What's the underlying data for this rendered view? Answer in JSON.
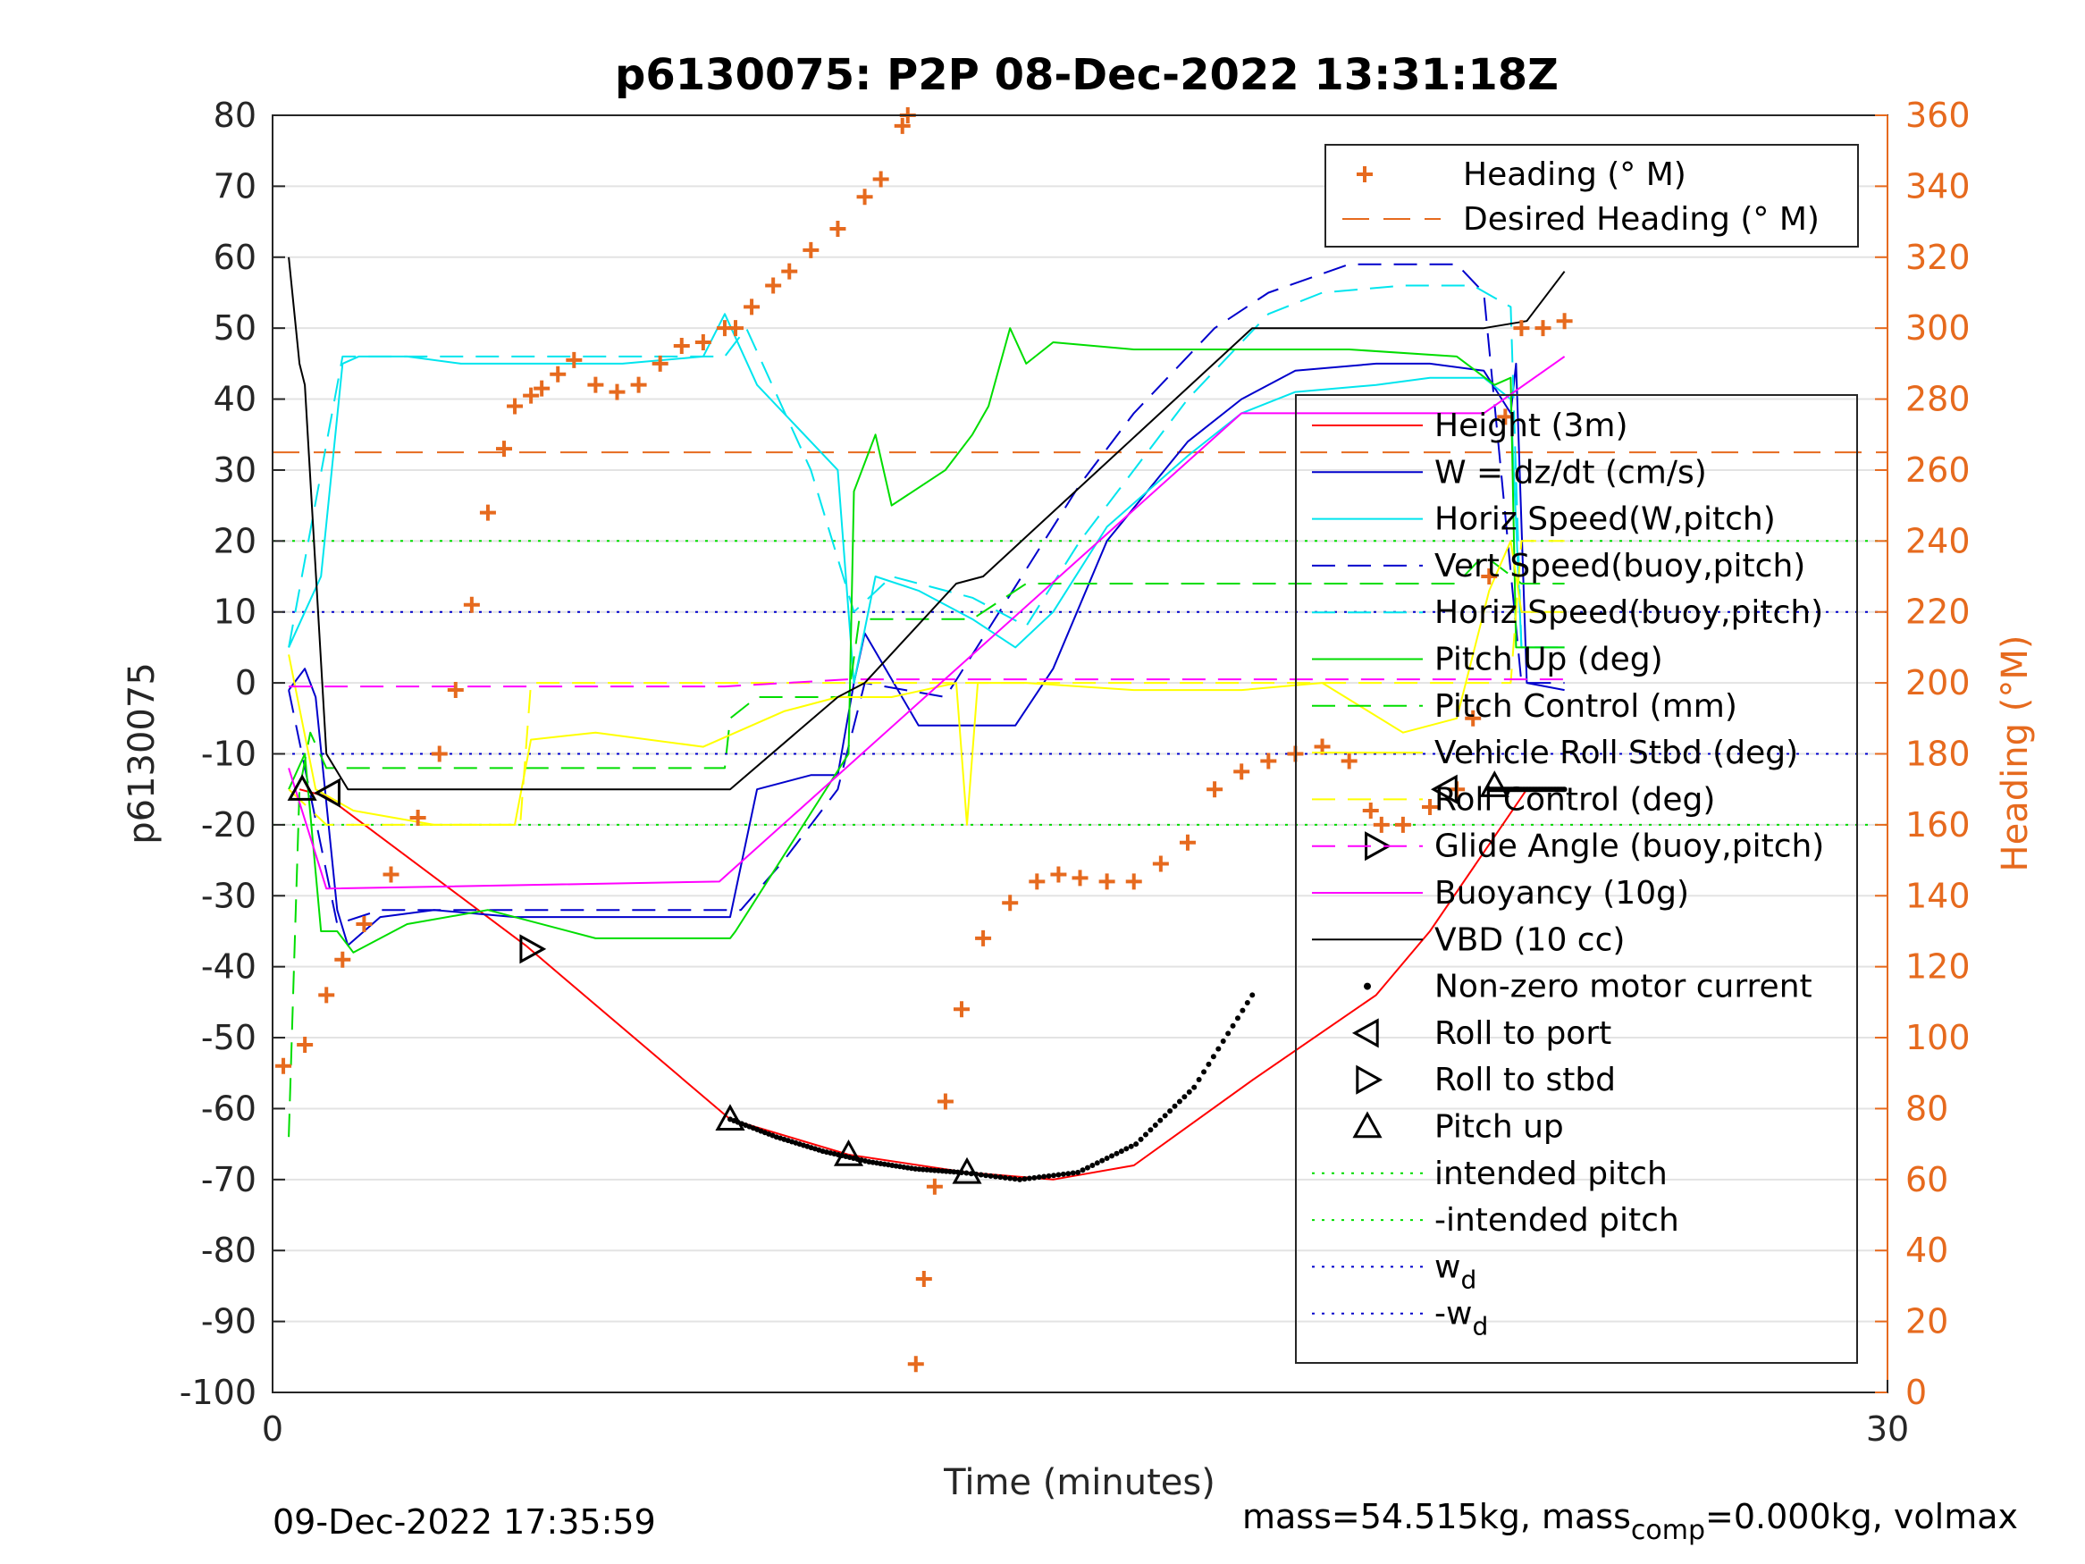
{
  "title": "p6130075: P2P 08-Dec-2022 13:31:18Z",
  "footer_left": "09-Dec-2022 17:35:59",
  "footer_right": {
    "part1": "mass=54.515kg, mass",
    "sub": "comp",
    "part2": "=0.000kg, volmax"
  },
  "colors": {
    "height": "#ff0000",
    "w": "#0000cc",
    "horiz": "#00e5ee",
    "vert": "#0000cc",
    "horiz_buoy": "#00e5ee",
    "pitch": "#00dd00",
    "pitch_control": "#00dd00",
    "roll": "#ffff00",
    "roll_control": "#ffff00",
    "glide": "#ff00ff",
    "buoyancy": "#ff00ff",
    "vbd": "#000000",
    "heading": "#e66a1e",
    "intended": "#00dd00",
    "wd": "#0000cc"
  },
  "chart_data": {
    "type": "line",
    "title": "p6130075: P2P 08-Dec-2022 13:31:18Z",
    "xlabel": "Time (minutes)",
    "ylabel": "p6130075",
    "ylabel_right": "Heading (°M)",
    "xlim": [
      0,
      30
    ],
    "ylim": [
      -100,
      80
    ],
    "ylim_right": [
      0,
      360
    ],
    "x_ticks": [
      "0",
      "30"
    ],
    "y_ticks": [
      "80",
      "70",
      "60",
      "50",
      "40",
      "30",
      "20",
      "10",
      "0",
      "-10",
      "-20",
      "-30",
      "-40",
      "-50",
      "-60",
      "-70",
      "-80",
      "-90",
      "-100"
    ],
    "y_right_ticks": [
      "360",
      "340",
      "320",
      "300",
      "280",
      "260",
      "240",
      "220",
      "200",
      "180",
      "160",
      "140",
      "120",
      "100",
      "80",
      "60",
      "40",
      "20",
      "0"
    ],
    "grid": true,
    "legends": {
      "heading": {
        "location": "top-right",
        "entries": [
          "Heading (° M)",
          "Desired Heading (° M)"
        ]
      },
      "main": {
        "location": "right",
        "entries": [
          "Height (3m)",
          "W = dz/dt (cm/s)",
          "Horiz Speed(W,pitch)",
          "Vert Speed(buoy,pitch)",
          "Horiz Speed(buoy,pitch)",
          "Pitch Up (deg)",
          "Pitch Control (mm)",
          "Vehicle Roll Stbd (deg)",
          "Roll Control (deg)",
          "Glide Angle (buoy,pitch)",
          "Buoyancy (10g)",
          "VBD (10 cc)",
          "Non-zero motor current",
          "Roll to port",
          "Roll to stbd",
          "Pitch up",
          "intended pitch",
          "-intended pitch",
          "w",
          "-w"
        ],
        "subscripts": {
          "18": "d",
          "19": "d"
        }
      }
    },
    "series": [
      {
        "name": "Height (3m)",
        "x": [
          0.5,
          1.0,
          4.7,
          8.5,
          10.7,
          12.9,
          14.5,
          16,
          18.2,
          20.5,
          21.5,
          23.3
        ],
        "y": [
          -15,
          -16,
          -37,
          -61.5,
          -66.5,
          -69,
          -70,
          -68,
          -56,
          -44,
          -35,
          -15
        ]
      },
      {
        "name": "W = dz/dt (cm/s)",
        "x": [
          0.3,
          0.6,
          0.8,
          1.2,
          1.4,
          2,
          3,
          4.5,
          5.5,
          6.5,
          8.5,
          9,
          10,
          10.5,
          10.8,
          11,
          12,
          13,
          13.8,
          14.5,
          15.5,
          17,
          18,
          19,
          20.5,
          21.5,
          22.5,
          23.0,
          23.1,
          23.3,
          24
        ],
        "y": [
          -1,
          2,
          -2,
          -32,
          -37,
          -33,
          -32,
          -33,
          -33,
          -33,
          -33,
          -15,
          -13,
          -13,
          0,
          7,
          -6,
          -6,
          -6,
          2,
          20,
          34,
          40,
          44,
          45,
          45,
          44,
          38,
          45,
          0,
          -1
        ]
      },
      {
        "name": "Horiz Speed(W,pitch)",
        "x": [
          0.3,
          0.6,
          0.9,
          1.3,
          1.6,
          2.5,
          3.5,
          5,
          6.5,
          8,
          8.4,
          9,
          10.5,
          10.8,
          11.2,
          12,
          13,
          13.8,
          14.5,
          15.5,
          17,
          18,
          19,
          20.5,
          21.5,
          22.5,
          23.0,
          23.2,
          24
        ],
        "y": [
          5,
          10,
          15,
          45,
          46,
          46,
          45,
          45,
          45,
          46,
          52,
          42,
          30,
          0,
          15,
          13,
          9,
          5,
          10,
          22,
          32,
          38,
          41,
          42,
          43,
          43,
          40,
          5,
          5
        ]
      },
      {
        "name": "Vert Speed(buoy,pitch)",
        "x": [
          0.3,
          1.2,
          2,
          8.4,
          8.7,
          9.5,
          10.5,
          11,
          12.5,
          13.5,
          15,
          16,
          17.5,
          18.5,
          20,
          21,
          22,
          22.5,
          23.2,
          24
        ],
        "y": [
          -1,
          -34,
          -32,
          -32,
          -32,
          -25,
          -15,
          0,
          -2,
          10,
          28,
          38,
          50,
          55,
          59,
          59,
          59,
          55,
          0,
          0
        ]
      },
      {
        "name": "Horiz Speed(buoy,pitch)",
        "x": [
          0.3,
          1.3,
          2,
          8.4,
          8.8,
          10,
          10.8,
          11.5,
          13,
          14,
          15,
          17,
          18.5,
          19.5,
          21,
          22.3,
          23,
          23.2,
          24
        ],
        "y": [
          5,
          46,
          46,
          46,
          50,
          30,
          10,
          15,
          12,
          8,
          20,
          40,
          52,
          55,
          56,
          56,
          53,
          5,
          5
        ]
      },
      {
        "name": "Pitch Up (deg)",
        "x": [
          0.3,
          0.6,
          0.9,
          1.2,
          1.5,
          2.5,
          4,
          6,
          8,
          8.5,
          8.6,
          10.7,
          10.8,
          11.2,
          11.5,
          12.5,
          13,
          13.3,
          13.7,
          14,
          14.5,
          16,
          18,
          20,
          22,
          22.7,
          23.0,
          23.1,
          23.3,
          24
        ],
        "y": [
          -15,
          -10,
          -35,
          -35,
          -38,
          -34,
          -32,
          -36,
          -36,
          -36,
          -35,
          -10,
          27,
          35,
          25,
          30,
          35,
          39,
          50,
          45,
          48,
          47,
          47,
          47,
          46,
          42,
          43,
          5,
          5,
          5
        ]
      },
      {
        "name": "Pitch Control (mm)",
        "x": [
          0.3,
          0.5,
          0.7,
          1.0,
          8.4,
          8.5,
          9,
          10.7,
          10.9,
          13,
          14,
          22,
          22.5,
          23.2,
          24
        ],
        "y": [
          -64,
          -15,
          -7,
          -12,
          -12,
          -5,
          -2,
          -2,
          9,
          9,
          14,
          14,
          18,
          14,
          14
        ]
      },
      {
        "name": "Vehicle Roll Stbd (deg)",
        "x": [
          0.3,
          0.8,
          1.5,
          3,
          4.5,
          4.8,
          6,
          8,
          9.5,
          10.5,
          11.5,
          12.7,
          12.9,
          13.1,
          14,
          16,
          18,
          19.5,
          21,
          22,
          22.6,
          23.0,
          23.2,
          24
        ],
        "y": [
          4,
          -15,
          -18,
          -20,
          -20,
          -8,
          -7,
          -9,
          -4,
          -2,
          -2,
          0,
          -20,
          0,
          0,
          -1,
          -1,
          0,
          -7,
          -5,
          13,
          20,
          10,
          10
        ]
      },
      {
        "name": "Roll Control (deg)",
        "x": [
          0.3,
          1.0,
          4.6,
          4.8,
          8.4,
          8.5,
          23.0,
          23.2,
          24
        ],
        "y": [
          -15,
          -20,
          -20,
          0,
          0,
          0,
          0,
          20,
          20
        ]
      },
      {
        "name": "Glide Angle (buoy,pitch)",
        "x": [
          0.3,
          1.0,
          8.4,
          10.7,
          23.0,
          24
        ],
        "y": [
          -0.5,
          -0.5,
          -0.5,
          0.5,
          0.5,
          0.5
        ]
      },
      {
        "name": "Buoyancy (10g)",
        "x": [
          0.3,
          1.0,
          8.3,
          18.0,
          22.5,
          24
        ],
        "y": [
          -12,
          -29,
          -28,
          38,
          38,
          46
        ]
      },
      {
        "name": "VBD (10 cc)",
        "x": [
          0.3,
          0.5,
          0.6,
          1.0,
          1.4,
          8.5,
          10.5,
          11,
          12.7,
          13.2,
          18.2,
          19,
          22.5,
          23.3,
          24
        ],
        "y": [
          60,
          45,
          42,
          -10,
          -15,
          -15,
          -2,
          0,
          14,
          15,
          50,
          50,
          50,
          51,
          58
        ]
      },
      {
        "name": "Heading (° M)",
        "axis": "right",
        "x": [
          0.2,
          0.6,
          1.0,
          1.3,
          1.7,
          2.2,
          2.7,
          3.1,
          3.4,
          3.7,
          4.0,
          4.3,
          4.5,
          4.8,
          5.0,
          5.3,
          5.6,
          6.0,
          6.4,
          6.8,
          7.2,
          7.6,
          8.0,
          8.4,
          8.6,
          8.9,
          9.3,
          9.6,
          10.0,
          10.5,
          11.0,
          11.3,
          11.7,
          11.8,
          11.95,
          12.1,
          12.3,
          12.5,
          12.8,
          13.2,
          13.7,
          14.2,
          14.6,
          15.0,
          15.5,
          16.0,
          16.5,
          17.0,
          17.5,
          18.0,
          18.5,
          19.0,
          19.5,
          20.0,
          20.4,
          20.6,
          21.0,
          21.5,
          22.0,
          22.3,
          22.6,
          22.9,
          23.2,
          23.6,
          24.0
        ],
        "y": [
          92,
          98,
          112,
          122,
          132,
          146,
          162,
          180,
          198,
          222,
          248,
          266,
          278,
          281,
          283,
          287,
          291,
          284,
          282,
          284,
          290,
          295,
          296,
          300,
          300,
          306,
          312,
          316,
          322,
          328,
          337,
          342,
          357,
          360,
          8,
          32,
          58,
          82,
          108,
          128,
          138,
          144,
          146,
          145,
          144,
          144,
          149,
          155,
          170,
          175,
          178,
          180,
          182,
          178,
          164,
          160,
          160,
          165,
          170,
          190,
          230,
          275,
          300,
          300,
          302
        ]
      },
      {
        "name": "Desired Heading (° M)",
        "axis": "right",
        "x": [
          0,
          30
        ],
        "y": [
          265,
          265
        ]
      },
      {
        "name": "intended pitch",
        "x": [
          0,
          30
        ],
        "y": [
          20,
          20
        ]
      },
      {
        "name": "-intended pitch",
        "x": [
          0,
          30
        ],
        "y": [
          -20,
          -20
        ]
      },
      {
        "name": "w_d",
        "x": [
          0,
          30
        ],
        "y": [
          10,
          10
        ]
      },
      {
        "name": "-w_d",
        "x": [
          0,
          30
        ],
        "y": [
          -10,
          -10
        ]
      }
    ],
    "markers": {
      "roll_to_port": {
        "x": [
          1.05,
          21.8
        ],
        "y": [
          -15.5,
          -15
        ]
      },
      "roll_to_stbd": {
        "x": [
          4.8,
          20.5
        ],
        "y": [
          -37.5,
          -23
        ]
      },
      "pitch_up": {
        "x": [
          0.55,
          8.5,
          10.7,
          12.9,
          22.7
        ],
        "y": [
          -15,
          -61.5,
          -66.5,
          -69,
          -14.5
        ]
      },
      "motor_current": [
        {
          "x_from": 8.5,
          "x_to": 12.8,
          "y": [
            -61.5,
            -64,
            -66,
            -67.5,
            -68.5,
            -69
          ]
        },
        {
          "x_from": 12.8,
          "x_to": 18.2,
          "y": [
            -69,
            -70,
            -69,
            -65,
            -57,
            -44
          ]
        },
        {
          "x_from": 22.6,
          "x_to": 24.0,
          "y": [
            -15,
            -15,
            -15
          ]
        }
      ]
    }
  }
}
